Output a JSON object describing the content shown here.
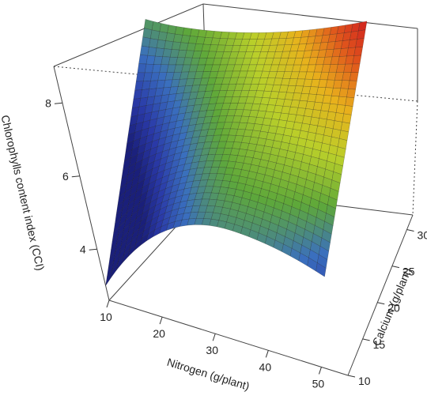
{
  "chart_data": {
    "type": "surface3d",
    "title": "",
    "xlabel": "Nitrogen (g/plant)",
    "ylabel": "Calcium (g/plant)",
    "zlabel": "Chlorophylls content index (CCI)",
    "x_ticks": [
      10,
      20,
      30,
      40,
      50
    ],
    "y_ticks": [
      10,
      15,
      20,
      25,
      30
    ],
    "z_ticks": [
      4,
      6,
      8
    ],
    "xlim": [
      10,
      55
    ],
    "ylim": [
      10,
      32
    ],
    "zlim": [
      2.6,
      9.0
    ],
    "grid": false,
    "colormap": [
      "#1a1f7a",
      "#2a3aa8",
      "#3a6fbe",
      "#5ea83a",
      "#b9cf2a",
      "#e8b21c",
      "#e0561c",
      "#d01f1f"
    ],
    "corner_values": [
      {
        "x": 10,
        "y": 10,
        "z": 3.0
      },
      {
        "x": 10,
        "y": 32,
        "z": 5.9
      },
      {
        "x": 55,
        "y": 10,
        "z": 5.3
      },
      {
        "x": 55,
        "y": 32,
        "z": 7.9
      }
    ],
    "ridge_peak": {
      "x": 38,
      "y": 10,
      "z": 5.8
    }
  }
}
